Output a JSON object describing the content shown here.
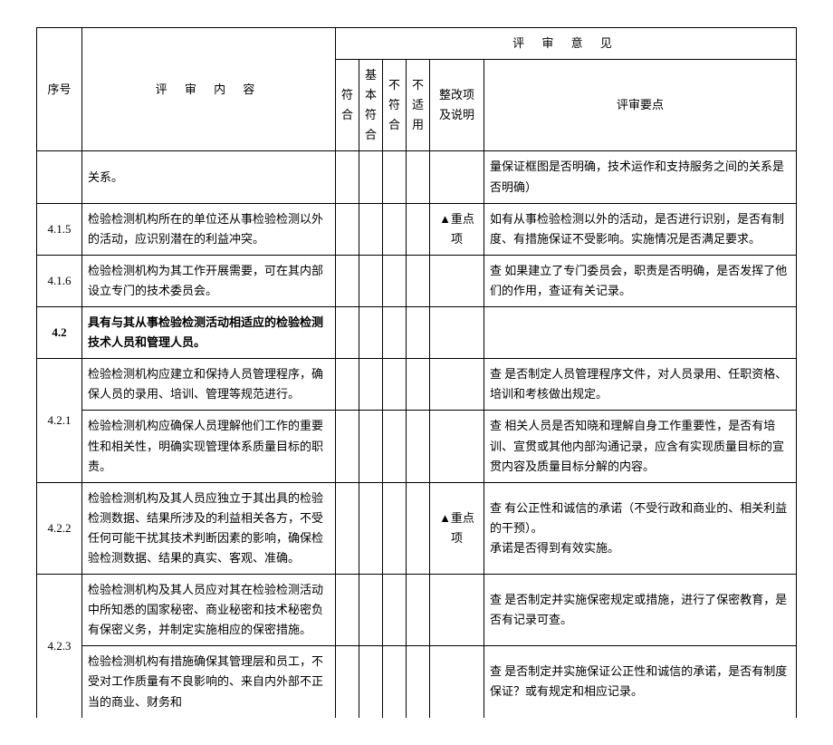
{
  "header": {
    "seq": "序号",
    "content": "评 审 内 容",
    "opinion": "评 审 意 见",
    "conform": "符合",
    "basic": "基本符合",
    "nonconform": "不符合",
    "na": "不适用",
    "correction": "整改项及说明",
    "keypoints": "评审要点"
  },
  "rows": [
    {
      "seq": "",
      "content": "关系。",
      "conform": "",
      "basic": "",
      "nonconform": "",
      "na": "",
      "note": "",
      "key": "量保证框图是否明确，技术运作和支持服务之间的关系是否明确）"
    },
    {
      "seq": "4.1.5",
      "content": "检验检测机构所在的单位还从事检验检测以外的活动，应识别潜在的利益冲突。",
      "conform": "",
      "basic": "",
      "nonconform": "",
      "na": "",
      "note": "▲重点项",
      "key": "如有从事检验检测以外的活动，是否进行识别，是否有制度、有措施保证不受影响。实施情况是否满足要求。"
    },
    {
      "seq": "4.1.6",
      "content": "检验检测机构为其工作开展需要，可在其内部设立专门的技术委员会。",
      "conform": "",
      "basic": "",
      "nonconform": "",
      "na": "",
      "note": "",
      "key": "查 如果建立了专门委员会，职责是否明确，是否发挥了他们的作用，查证有关记录。"
    },
    {
      "seq": "4.2",
      "content": "具有与其从事检验检测活动相适应的检验检测技术人员和管理人员。",
      "bold": true,
      "conform": "",
      "basic": "",
      "nonconform": "",
      "na": "",
      "note": "",
      "key": ""
    }
  ],
  "group_421": {
    "seq": "4.2.1",
    "r1": {
      "content": "检验检测机构应建立和保持人员管理程序，确保人员的录用、培训、管理等规范进行。",
      "key": "查 是否制定人员管理程序文件，对人员录用、任职资格、培训和考核做出规定。"
    },
    "r2": {
      "content": "检验检测机构应确保人员理解他们工作的重要性和相关性，明确实现管理体系质量目标的职责。",
      "key": "查 相关人员是否知晓和理解自身工作重要性，是否有培训、宣贯或其他内部沟通记录，应含有实现质量目标的宣贯内容及质量目标分解的内容。"
    }
  },
  "row_422": {
    "seq": "4.2.2",
    "content": "检验检测机构及其人员应独立于其出具的检验检测数据、结果所涉及的利益相关各方，不受任何可能干扰其技术判断因素的影响，确保检验检测数据、结果的真实、客观、准确。",
    "note": "▲重点项",
    "key": "查 有公正性和诚信的承诺（不受行政和商业的、相关利益的干预）。\n承诺是否得到有效实施。"
  },
  "group_423": {
    "seq": "4.2.3",
    "r1": {
      "content": "检验检测机构及其人员应对其在检验检测活动中所知悉的国家秘密、商业秘密和技术秘密负有保密义务，并制定实施相应的保密措施。",
      "key": "查 是否制定并实施保密规定或措施，进行了保密教育，是否有记录可查。"
    },
    "r2": {
      "content": "检验检测机构有措施确保其管理层和员工，不受对工作质量有不良影响的、来自内外部不正当的商业、财务和",
      "key": "查 是否制定并实施保证公正性和诚信的承诺，是否有制度保证？或有规定和相应记录。",
      "noBottom": true
    }
  }
}
